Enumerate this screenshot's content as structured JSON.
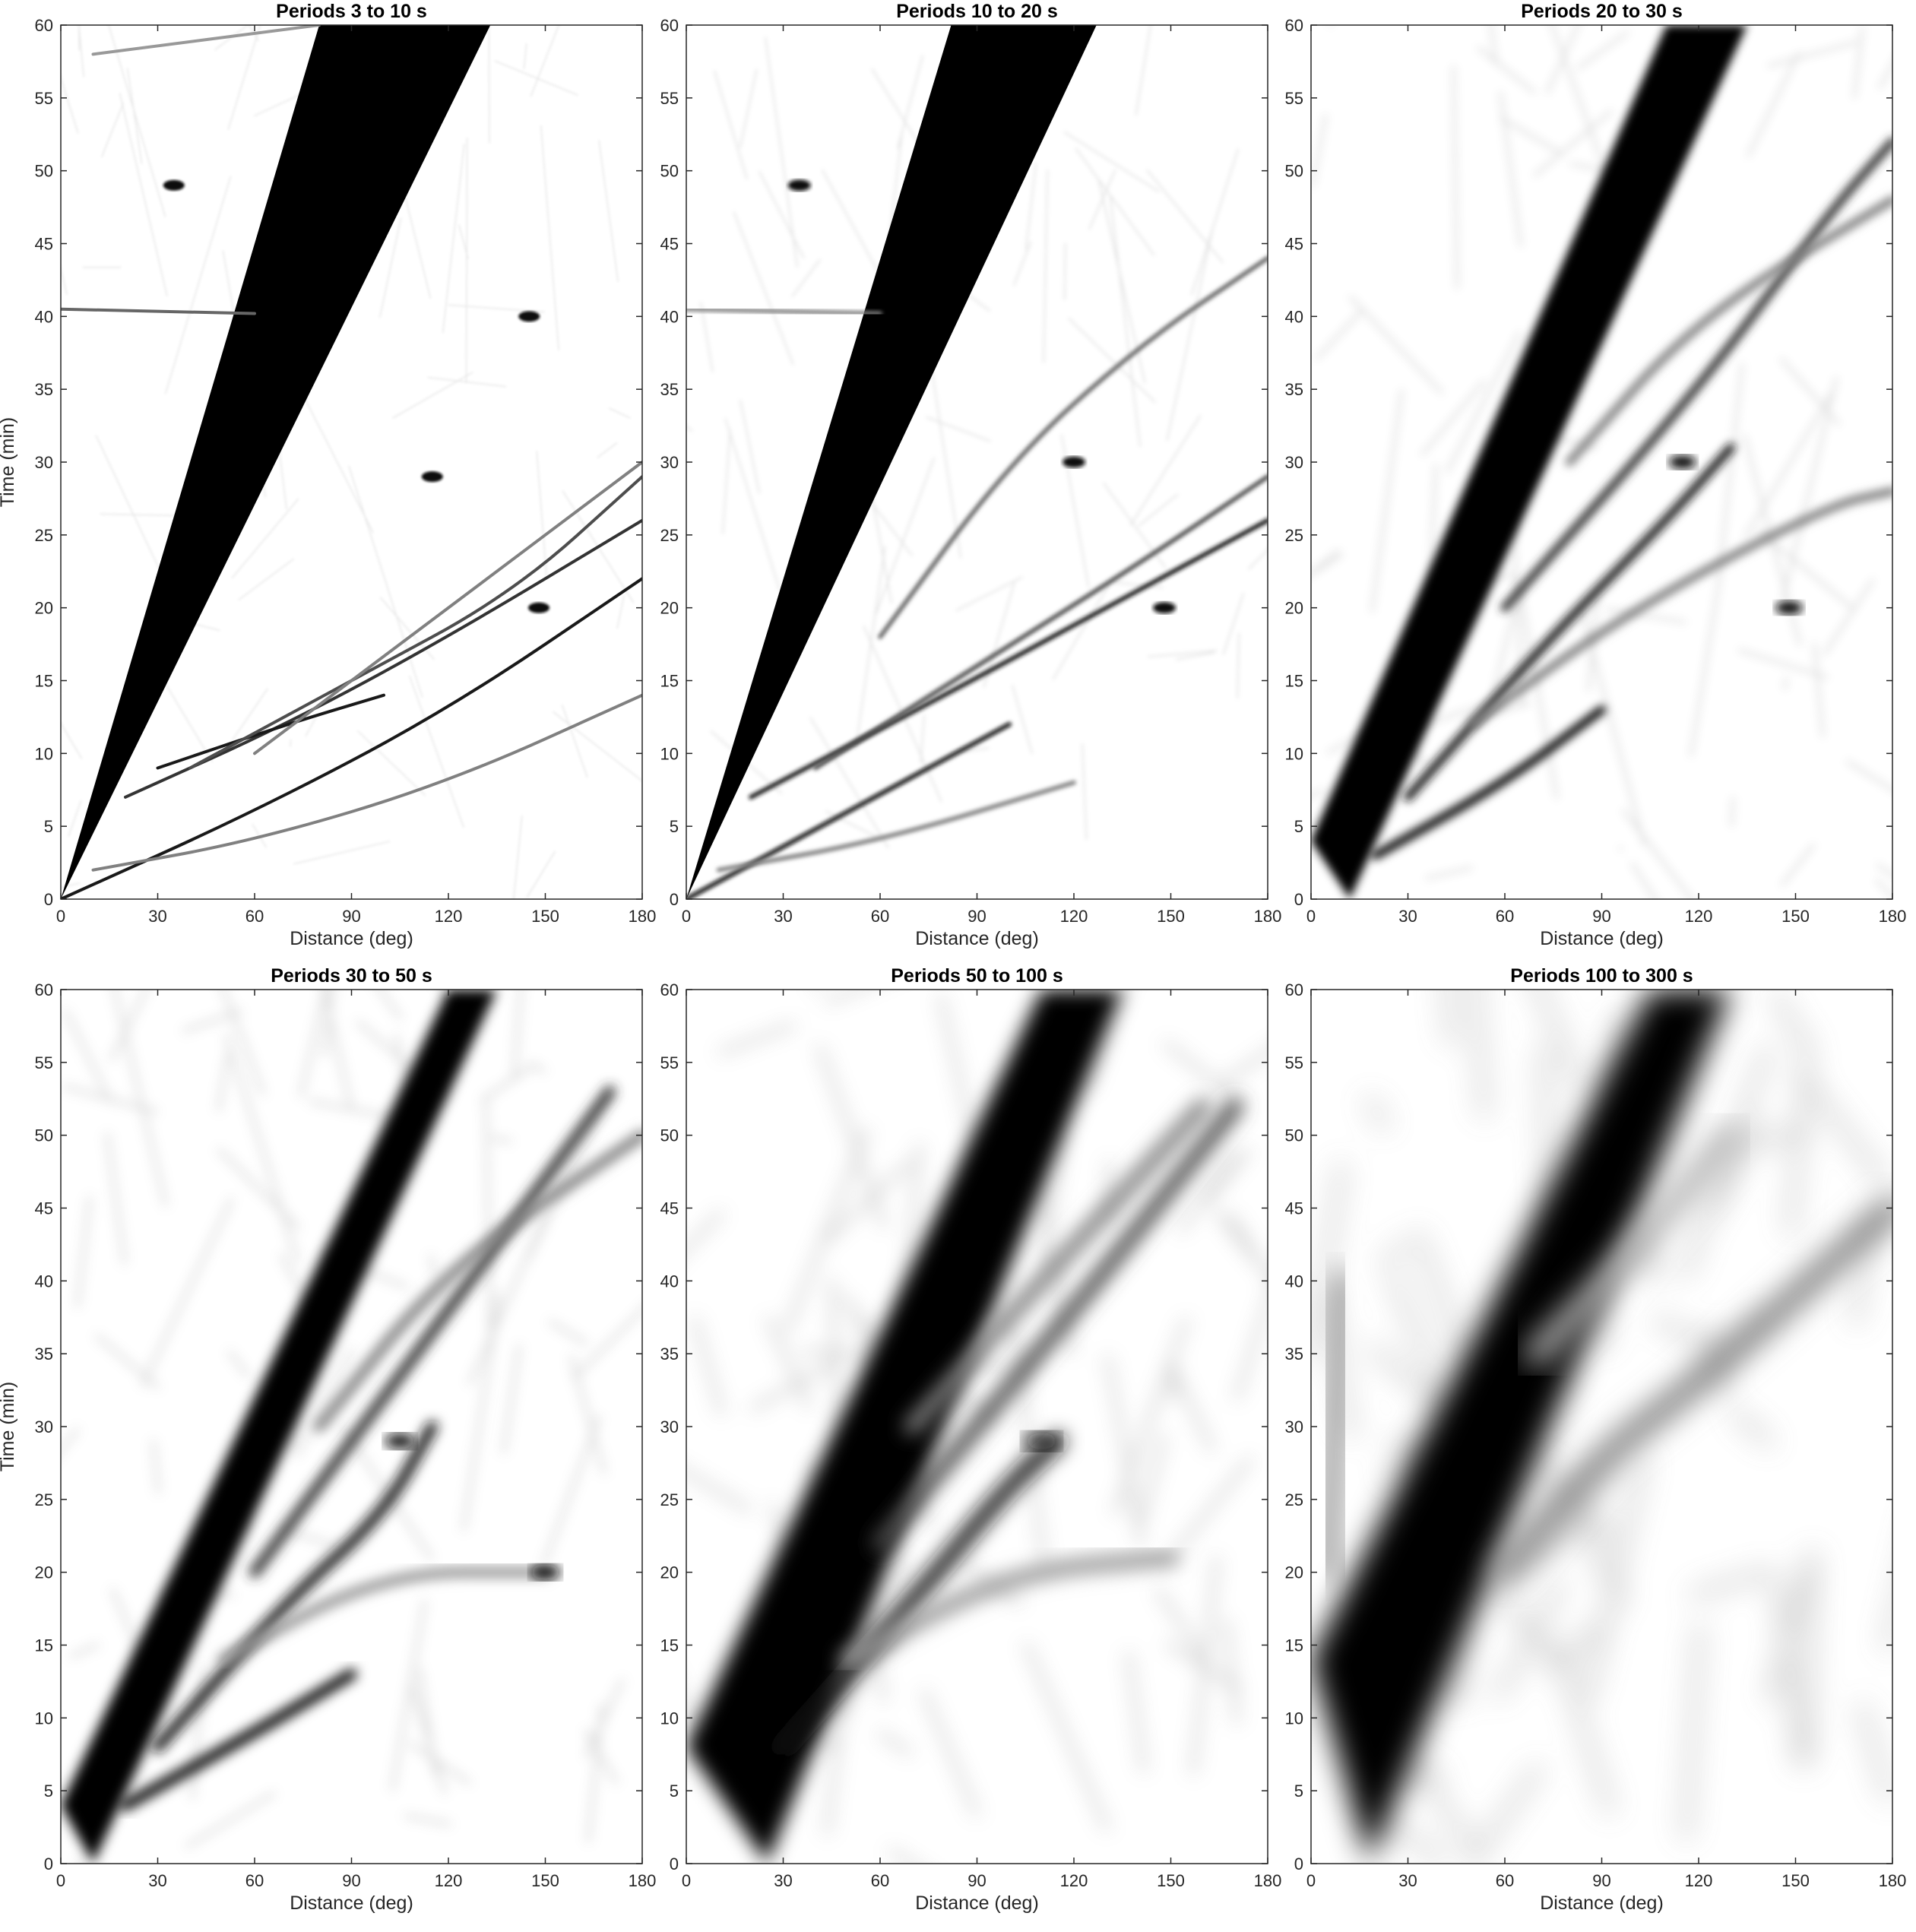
{
  "figure": {
    "ylabel": "Time (min)",
    "xlabel": "Distance (deg)",
    "colormap": "grayscale (white = low amplitude, black = high amplitude)"
  },
  "chart_data": [
    {
      "type": "heatmap",
      "title": "Periods 3 to 10 s",
      "xlabel": "Distance (deg)",
      "ylabel": "Time (min)",
      "xlim": [
        0,
        180
      ],
      "ylim": [
        0,
        60
      ],
      "xticks": [
        0,
        30,
        60,
        90,
        120,
        150,
        180
      ],
      "yticks": [
        0,
        5,
        10,
        15,
        20,
        25,
        30,
        35,
        40,
        45,
        50,
        55,
        60
      ],
      "grid": false,
      "dark_wedge": {
        "lower_edge": [
          [
            0,
            0
          ],
          [
            133,
            60
          ]
        ],
        "upper_edge": [
          [
            0,
            0
          ],
          [
            80,
            60
          ]
        ]
      },
      "branches": [
        {
          "points": [
            [
              0,
              0
            ],
            [
              60,
              6
            ],
            [
              120,
              13
            ],
            [
              180,
              22
            ]
          ],
          "strength": 0.9
        },
        {
          "points": [
            [
              20,
              7
            ],
            [
              70,
              12
            ],
            [
              120,
              18
            ],
            [
              180,
              26
            ]
          ],
          "strength": 0.8
        },
        {
          "points": [
            [
              30,
              9
            ],
            [
              70,
              12
            ],
            [
              100,
              14
            ]
          ],
          "strength": 0.9
        },
        {
          "points": [
            [
              40,
              9
            ],
            [
              90,
              15
            ],
            [
              140,
              21
            ],
            [
              180,
              29
            ]
          ],
          "strength": 0.7
        },
        {
          "points": [
            [
              10,
              2
            ],
            [
              60,
              4
            ],
            [
              120,
              8
            ],
            [
              180,
              14
            ]
          ],
          "strength": 0.5
        },
        {
          "points": [
            [
              0,
              40.5
            ],
            [
              60,
              40.2
            ]
          ],
          "strength": 0.6
        },
        {
          "points": [
            [
              10,
              58
            ],
            [
              80,
              60
            ]
          ],
          "strength": 0.4
        },
        {
          "points": [
            [
              60,
              10
            ],
            [
              120,
              20
            ],
            [
              180,
              30
            ]
          ],
          "strength": 0.5
        }
      ],
      "hotspots": [
        [
          148,
          20
        ],
        [
          35,
          49
        ],
        [
          115,
          29
        ],
        [
          145,
          40
        ]
      ],
      "blur": 0
    },
    {
      "type": "heatmap",
      "title": "Periods 10 to 20 s",
      "xlabel": "Distance (deg)",
      "ylabel": "",
      "xlim": [
        0,
        180
      ],
      "ylim": [
        0,
        60
      ],
      "xticks": [
        0,
        30,
        60,
        90,
        120,
        150,
        180
      ],
      "yticks": [
        0,
        5,
        10,
        15,
        20,
        25,
        30,
        35,
        40,
        45,
        50,
        55,
        60
      ],
      "grid": false,
      "dark_wedge": {
        "lower_edge": [
          [
            0,
            0
          ],
          [
            127,
            60
          ]
        ],
        "upper_edge": [
          [
            0,
            0
          ],
          [
            82,
            60
          ]
        ]
      },
      "branches": [
        {
          "points": [
            [
              0,
              0
            ],
            [
              50,
              6
            ],
            [
              100,
              12
            ]
          ],
          "strength": 0.95
        },
        {
          "points": [
            [
              20,
              7
            ],
            [
              80,
              14
            ],
            [
              130,
              20
            ],
            [
              180,
              26
            ]
          ],
          "strength": 0.9
        },
        {
          "points": [
            [
              40,
              9
            ],
            [
              90,
              16
            ],
            [
              140,
              23
            ],
            [
              180,
              29
            ]
          ],
          "strength": 0.7
        },
        {
          "points": [
            [
              60,
              18
            ],
            [
              100,
              30
            ],
            [
              140,
              38
            ],
            [
              180,
              44
            ]
          ],
          "strength": 0.6
        },
        {
          "points": [
            [
              10,
              2
            ],
            [
              60,
              4
            ],
            [
              120,
              8
            ]
          ],
          "strength": 0.5
        },
        {
          "points": [
            [
              0,
              40.5
            ],
            [
              60,
              40.2
            ]
          ],
          "strength": 0.5
        }
      ],
      "hotspots": [
        [
          148,
          20
        ],
        [
          35,
          49
        ],
        [
          120,
          30
        ]
      ],
      "blur": 0.5
    },
    {
      "type": "heatmap",
      "title": "Periods 20 to 30 s",
      "xlabel": "Distance (deg)",
      "ylabel": "",
      "xlim": [
        0,
        180
      ],
      "ylim": [
        0,
        60
      ],
      "xticks": [
        0,
        30,
        60,
        90,
        120,
        150,
        180
      ],
      "yticks": [
        0,
        5,
        10,
        15,
        20,
        25,
        30,
        35,
        40,
        45,
        50,
        55,
        60
      ],
      "grid": false,
      "dark_wedge": {
        "lower_edge": [
          [
            12,
            0
          ],
          [
            135,
            60
          ]
        ],
        "upper_edge": [
          [
            0,
            4
          ],
          [
            110,
            60
          ]
        ]
      },
      "branches": [
        {
          "points": [
            [
              20,
              3
            ],
            [
              60,
              8
            ],
            [
              90,
              13
            ]
          ],
          "strength": 1.0
        },
        {
          "points": [
            [
              30,
              7
            ],
            [
              70,
              17
            ],
            [
              110,
              26
            ],
            [
              130,
              31
            ]
          ],
          "strength": 0.9
        },
        {
          "points": [
            [
              60,
              20
            ],
            [
              120,
              35
            ],
            [
              160,
              47
            ],
            [
              180,
              52
            ]
          ],
          "strength": 0.8
        },
        {
          "points": [
            [
              50,
              12
            ],
            [
              100,
              20
            ],
            [
              160,
              27
            ],
            [
              180,
              28
            ]
          ],
          "strength": 0.5
        },
        {
          "points": [
            [
              80,
              30
            ],
            [
              120,
              40
            ],
            [
              180,
              48
            ]
          ],
          "strength": 0.5
        }
      ],
      "hotspots": [
        [
          148,
          20
        ],
        [
          115,
          30
        ]
      ],
      "blur": 2
    },
    {
      "type": "heatmap",
      "title": "Periods 30 to 50 s",
      "xlabel": "Distance (deg)",
      "ylabel": "Time (min)",
      "xlim": [
        0,
        180
      ],
      "ylim": [
        0,
        60
      ],
      "xticks": [
        0,
        30,
        60,
        90,
        120,
        150,
        180
      ],
      "yticks": [
        0,
        5,
        10,
        15,
        20,
        25,
        30,
        35,
        40,
        45,
        50,
        55,
        60
      ],
      "grid": false,
      "dark_wedge": {
        "lower_edge": [
          [
            10,
            0
          ],
          [
            135,
            60
          ]
        ],
        "upper_edge": [
          [
            0,
            4
          ],
          [
            120,
            60
          ]
        ]
      },
      "branches": [
        {
          "points": [
            [
              20,
              4
            ],
            [
              60,
              9
            ],
            [
              90,
              13
            ]
          ],
          "strength": 1.0
        },
        {
          "points": [
            [
              30,
              8
            ],
            [
              70,
              18
            ],
            [
              100,
              24
            ],
            [
              115,
              30
            ]
          ],
          "strength": 0.9
        },
        {
          "points": [
            [
              60,
              20
            ],
            [
              120,
              38
            ],
            [
              170,
              53
            ]
          ],
          "strength": 0.8
        },
        {
          "points": [
            [
              50,
              14
            ],
            [
              100,
              20
            ],
            [
              150,
              20
            ]
          ],
          "strength": 0.4
        },
        {
          "points": [
            [
              80,
              30
            ],
            [
              120,
              41
            ],
            [
              180,
              50
            ]
          ],
          "strength": 0.5
        }
      ],
      "hotspots": [
        [
          150,
          20
        ],
        [
          105,
          29
        ]
      ],
      "blur": 3
    },
    {
      "type": "heatmap",
      "title": "Periods 50 to 100 s",
      "xlabel": "Distance (deg)",
      "ylabel": "",
      "xlim": [
        0,
        180
      ],
      "ylim": [
        0,
        60
      ],
      "xticks": [
        0,
        30,
        60,
        90,
        120,
        150,
        180
      ],
      "yticks": [
        0,
        5,
        10,
        15,
        20,
        25,
        30,
        35,
        40,
        45,
        50,
        55,
        60
      ],
      "grid": false,
      "dark_wedge": {
        "lower_edge": [
          [
            25,
            0
          ],
          [
            135,
            60
          ]
        ],
        "upper_edge": [
          [
            0,
            8
          ],
          [
            110,
            60
          ]
        ]
      },
      "branches": [
        {
          "points": [
            [
              30,
              8
            ],
            [
              70,
              18
            ],
            [
              100,
              26
            ],
            [
              115,
              29
            ]
          ],
          "strength": 0.9
        },
        {
          "points": [
            [
              60,
              22
            ],
            [
              120,
              38
            ],
            [
              170,
              52
            ]
          ],
          "strength": 0.7
        },
        {
          "points": [
            [
              50,
              14
            ],
            [
              100,
              20
            ],
            [
              150,
              21
            ]
          ],
          "strength": 0.4
        },
        {
          "points": [
            [
              70,
              30
            ],
            [
              110,
              40
            ],
            [
              160,
              52
            ]
          ],
          "strength": 0.5
        }
      ],
      "hotspots": [
        [
          110,
          29
        ]
      ],
      "blur": 5
    },
    {
      "type": "heatmap",
      "title": "Periods 100 to 300 s",
      "xlabel": "Distance (deg)",
      "ylabel": "",
      "xlim": [
        0,
        180
      ],
      "ylim": [
        0,
        60
      ],
      "xticks": [
        0,
        30,
        60,
        90,
        120,
        150,
        180
      ],
      "yticks": [
        0,
        5,
        10,
        15,
        20,
        25,
        30,
        35,
        40,
        45,
        50,
        55,
        60
      ],
      "grid": false,
      "dark_wedge": {
        "lower_edge": [
          [
            18,
            0
          ],
          [
            130,
            60
          ]
        ],
        "upper_edge": [
          [
            0,
            14
          ],
          [
            105,
            60
          ]
        ]
      },
      "branches": [
        {
          "points": [
            [
              60,
              20
            ],
            [
              90,
              28
            ],
            [
              120,
              33
            ],
            [
              180,
              45
            ]
          ],
          "strength": 0.5
        },
        {
          "points": [
            [
              5,
              20
            ],
            [
              10,
              40
            ]
          ],
          "strength": 0.4
        },
        {
          "points": [
            [
              70,
              35
            ],
            [
              100,
              42
            ],
            [
              130,
              50
            ]
          ],
          "strength": 0.3
        }
      ],
      "hotspots": [],
      "blur": 8
    }
  ]
}
